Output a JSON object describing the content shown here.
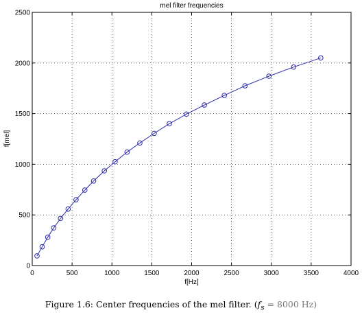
{
  "chart_data": {
    "type": "line",
    "title": "mel filter frequencies",
    "xlabel": "f[Hz]",
    "ylabel": "f[mel]",
    "xlim": [
      0,
      4000
    ],
    "ylim": [
      0,
      2500
    ],
    "xticks": [
      0,
      500,
      1000,
      1500,
      2000,
      2500,
      3000,
      3500,
      4000
    ],
    "yticks": [
      0,
      500,
      1000,
      1500,
      2000,
      2500
    ],
    "grid": true,
    "marker": "circle",
    "line_color": "#2a2aa8",
    "series": [
      {
        "x": [
          60,
          125,
          195,
          270,
          355,
          450,
          550,
          660,
          770,
          905,
          1040,
          1190,
          1350,
          1530,
          1720,
          1935,
          2160,
          2410,
          2670,
          2970,
          3280,
          3620
        ],
        "y": [
          95,
          185,
          280,
          372,
          465,
          558,
          650,
          745,
          835,
          935,
          1025,
          1120,
          1210,
          1305,
          1400,
          1495,
          1585,
          1680,
          1775,
          1870,
          1960,
          2050
        ]
      }
    ]
  },
  "caption": {
    "prefix": "Figure 1.6: Center frequencies of the mel filter. (",
    "symbol": "f",
    "subscript": "s",
    "suffix": " = 8000 Hz)"
  }
}
